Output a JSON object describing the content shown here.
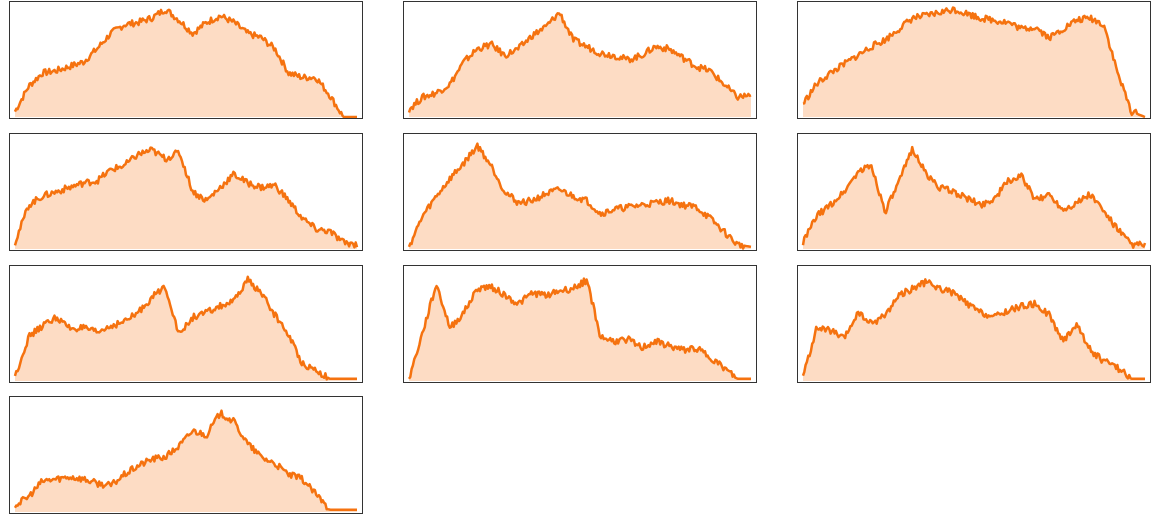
{
  "style": {
    "line_color": "#f5720f",
    "fill_color": "#fddcc4",
    "frame_color": "#333333"
  },
  "chart_data": [
    {
      "type": "area",
      "grid": false,
      "ylim": [
        0,
        1
      ],
      "x": [
        0,
        0.04,
        0.08,
        0.12,
        0.16,
        0.2,
        0.24,
        0.28,
        0.32,
        0.36,
        0.4,
        0.44,
        0.48,
        0.52,
        0.56,
        0.6,
        0.64,
        0.68,
        0.72,
        0.76,
        0.8,
        0.84,
        0.88,
        0.92,
        0.96,
        1.0
      ],
      "values": [
        0.05,
        0.28,
        0.4,
        0.42,
        0.46,
        0.5,
        0.62,
        0.76,
        0.84,
        0.86,
        0.9,
        0.98,
        0.88,
        0.76,
        0.86,
        0.92,
        0.86,
        0.76,
        0.72,
        0.62,
        0.4,
        0.36,
        0.36,
        0.2,
        0.0,
        0.0
      ]
    },
    {
      "type": "area",
      "grid": false,
      "ylim": [
        0,
        1
      ],
      "x": [
        0,
        0.04,
        0.08,
        0.12,
        0.16,
        0.2,
        0.24,
        0.28,
        0.32,
        0.36,
        0.4,
        0.44,
        0.48,
        0.52,
        0.56,
        0.6,
        0.64,
        0.68,
        0.72,
        0.76,
        0.8,
        0.84,
        0.88,
        0.92,
        0.96,
        1.0
      ],
      "values": [
        0.07,
        0.18,
        0.22,
        0.3,
        0.5,
        0.62,
        0.66,
        0.56,
        0.62,
        0.74,
        0.82,
        0.95,
        0.7,
        0.64,
        0.58,
        0.56,
        0.52,
        0.56,
        0.64,
        0.62,
        0.54,
        0.46,
        0.42,
        0.3,
        0.18,
        0.2
      ]
    },
    {
      "type": "area",
      "grid": false,
      "ylim": [
        0,
        1
      ],
      "x": [
        0,
        0.04,
        0.08,
        0.12,
        0.16,
        0.2,
        0.24,
        0.28,
        0.32,
        0.36,
        0.4,
        0.44,
        0.48,
        0.52,
        0.56,
        0.6,
        0.64,
        0.68,
        0.72,
        0.76,
        0.8,
        0.84,
        0.88,
        0.92,
        0.96,
        1.0
      ],
      "values": [
        0.12,
        0.3,
        0.4,
        0.48,
        0.56,
        0.64,
        0.7,
        0.8,
        0.9,
        0.92,
        0.95,
        0.98,
        0.94,
        0.9,
        0.88,
        0.86,
        0.8,
        0.82,
        0.72,
        0.8,
        0.88,
        0.9,
        0.84,
        0.4,
        0.05,
        0.0
      ]
    },
    {
      "type": "area",
      "grid": false,
      "ylim": [
        0,
        1
      ],
      "x": [
        0,
        0.04,
        0.08,
        0.12,
        0.16,
        0.2,
        0.24,
        0.28,
        0.32,
        0.36,
        0.4,
        0.44,
        0.48,
        0.52,
        0.56,
        0.6,
        0.64,
        0.68,
        0.72,
        0.76,
        0.8,
        0.84,
        0.88,
        0.92,
        0.96,
        1.0
      ],
      "values": [
        0.06,
        0.4,
        0.48,
        0.52,
        0.56,
        0.6,
        0.62,
        0.72,
        0.76,
        0.86,
        0.9,
        0.82,
        0.88,
        0.52,
        0.44,
        0.56,
        0.68,
        0.6,
        0.56,
        0.58,
        0.44,
        0.28,
        0.18,
        0.16,
        0.06,
        0.04
      ]
    },
    {
      "type": "area",
      "grid": false,
      "ylim": [
        0,
        1
      ],
      "x": [
        0,
        0.04,
        0.08,
        0.12,
        0.16,
        0.2,
        0.24,
        0.28,
        0.32,
        0.36,
        0.4,
        0.44,
        0.48,
        0.52,
        0.56,
        0.6,
        0.64,
        0.68,
        0.72,
        0.76,
        0.8,
        0.84,
        0.88,
        0.92,
        0.96,
        1.0
      ],
      "values": [
        0.02,
        0.3,
        0.48,
        0.64,
        0.78,
        0.94,
        0.76,
        0.52,
        0.42,
        0.44,
        0.5,
        0.54,
        0.48,
        0.44,
        0.32,
        0.36,
        0.38,
        0.4,
        0.42,
        0.44,
        0.4,
        0.38,
        0.28,
        0.16,
        0.04,
        0.02
      ]
    },
    {
      "type": "area",
      "grid": false,
      "ylim": [
        0,
        1
      ],
      "x": [
        0,
        0.04,
        0.08,
        0.12,
        0.16,
        0.2,
        0.24,
        0.28,
        0.32,
        0.36,
        0.4,
        0.44,
        0.48,
        0.52,
        0.56,
        0.6,
        0.64,
        0.68,
        0.72,
        0.76,
        0.8,
        0.84,
        0.88,
        0.92,
        0.96,
        1.0
      ],
      "values": [
        0.06,
        0.3,
        0.4,
        0.52,
        0.7,
        0.76,
        0.34,
        0.6,
        0.92,
        0.68,
        0.56,
        0.52,
        0.46,
        0.4,
        0.46,
        0.62,
        0.66,
        0.44,
        0.5,
        0.36,
        0.42,
        0.5,
        0.34,
        0.18,
        0.04,
        0.04
      ]
    },
    {
      "type": "area",
      "grid": false,
      "ylim": [
        0,
        1
      ],
      "x": [
        0,
        0.04,
        0.08,
        0.12,
        0.16,
        0.2,
        0.24,
        0.28,
        0.32,
        0.36,
        0.4,
        0.44,
        0.48,
        0.52,
        0.56,
        0.6,
        0.64,
        0.68,
        0.72,
        0.76,
        0.8,
        0.84,
        0.88,
        0.92,
        0.96,
        1.0
      ],
      "values": [
        0.04,
        0.4,
        0.5,
        0.58,
        0.48,
        0.48,
        0.44,
        0.5,
        0.54,
        0.62,
        0.76,
        0.86,
        0.42,
        0.58,
        0.62,
        0.68,
        0.72,
        0.92,
        0.8,
        0.6,
        0.42,
        0.16,
        0.1,
        0.02,
        0.02,
        0.02
      ]
    },
    {
      "type": "area",
      "grid": false,
      "ylim": [
        0,
        1
      ],
      "x": [
        0,
        0.04,
        0.08,
        0.12,
        0.16,
        0.2,
        0.24,
        0.28,
        0.32,
        0.36,
        0.4,
        0.44,
        0.48,
        0.52,
        0.56,
        0.6,
        0.64,
        0.68,
        0.72,
        0.76,
        0.8,
        0.84,
        0.88,
        0.92,
        0.96,
        1.0
      ],
      "values": [
        0.02,
        0.44,
        0.88,
        0.48,
        0.62,
        0.84,
        0.86,
        0.78,
        0.7,
        0.8,
        0.78,
        0.82,
        0.84,
        0.92,
        0.4,
        0.36,
        0.38,
        0.3,
        0.36,
        0.32,
        0.28,
        0.3,
        0.22,
        0.12,
        0.02,
        0.02
      ]
    },
    {
      "type": "area",
      "grid": false,
      "ylim": [
        0,
        1
      ],
      "x": [
        0,
        0.04,
        0.08,
        0.12,
        0.16,
        0.2,
        0.24,
        0.28,
        0.32,
        0.36,
        0.4,
        0.44,
        0.48,
        0.52,
        0.56,
        0.6,
        0.64,
        0.68,
        0.72,
        0.76,
        0.8,
        0.84,
        0.88,
        0.92,
        0.96,
        1.0
      ],
      "values": [
        0.04,
        0.48,
        0.46,
        0.38,
        0.62,
        0.52,
        0.6,
        0.78,
        0.84,
        0.9,
        0.84,
        0.8,
        0.7,
        0.62,
        0.58,
        0.64,
        0.68,
        0.7,
        0.6,
        0.36,
        0.52,
        0.28,
        0.18,
        0.12,
        0.02,
        0.02
      ]
    },
    {
      "type": "area",
      "grid": false,
      "ylim": [
        0,
        1
      ],
      "x": [
        0,
        0.04,
        0.08,
        0.12,
        0.16,
        0.2,
        0.24,
        0.28,
        0.32,
        0.36,
        0.4,
        0.44,
        0.48,
        0.52,
        0.56,
        0.6,
        0.64,
        0.68,
        0.72,
        0.76,
        0.8,
        0.84,
        0.88,
        0.92,
        0.96,
        1.0
      ],
      "values": [
        0.06,
        0.14,
        0.28,
        0.3,
        0.32,
        0.3,
        0.26,
        0.24,
        0.34,
        0.42,
        0.48,
        0.5,
        0.6,
        0.74,
        0.7,
        0.9,
        0.82,
        0.62,
        0.5,
        0.44,
        0.34,
        0.3,
        0.16,
        0.02,
        0.02,
        0.02
      ]
    }
  ]
}
